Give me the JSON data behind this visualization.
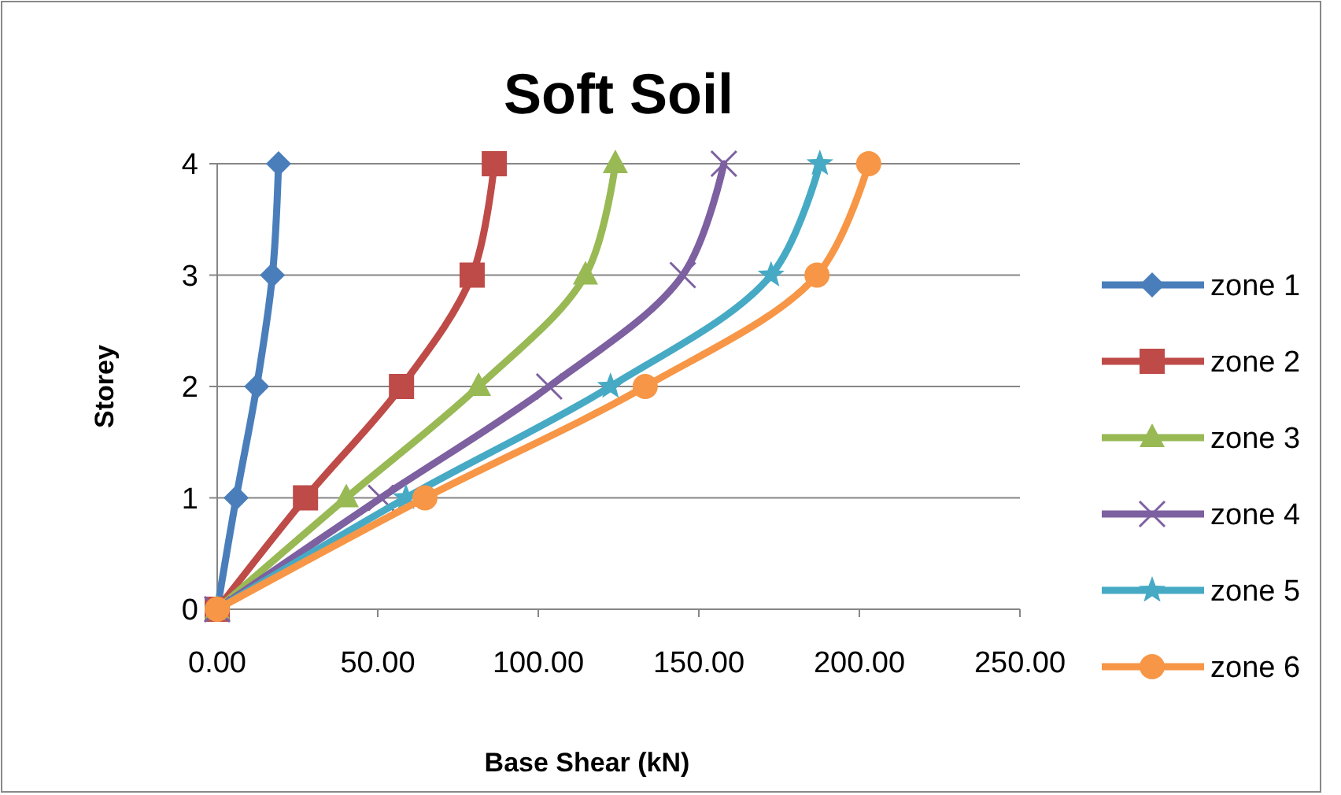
{
  "chart_data": {
    "type": "line",
    "title": "Soft Soil",
    "xlabel": "Base Shear (kN)",
    "ylabel": "Storey",
    "xlim": [
      0,
      250
    ],
    "xticks": [
      {
        "value": 0,
        "label": "0.00"
      },
      {
        "value": 50,
        "label": "50.00"
      },
      {
        "value": 100,
        "label": "100.00"
      },
      {
        "value": 150,
        "label": "150.00"
      },
      {
        "value": 200,
        "label": "200.00"
      },
      {
        "value": 250,
        "label": "250.00"
      }
    ],
    "ylim": [
      0,
      4
    ],
    "yticks": [
      0,
      1,
      2,
      3,
      4
    ],
    "grid": "y",
    "legend": "right",
    "series": [
      {
        "name": "zone 1",
        "color": "#4a7ebb",
        "marker": "diamond",
        "x": [
          0,
          5.9,
          12.3,
          17.2,
          19.1
        ],
        "values": [
          0,
          1,
          2,
          3,
          4
        ]
      },
      {
        "name": "zone 2",
        "color": "#be4b48",
        "marker": "square",
        "x": [
          0,
          27.5,
          57.4,
          79.4,
          86.3
        ],
        "values": [
          0,
          1,
          2,
          3,
          4
        ]
      },
      {
        "name": "zone 3",
        "color": "#98b954",
        "marker": "triangle",
        "x": [
          0,
          40.2,
          81.4,
          114.7,
          124
        ],
        "values": [
          0,
          1,
          2,
          3,
          4
        ]
      },
      {
        "name": "zone 4",
        "color": "#7d60a0",
        "marker": "cross",
        "x": [
          0,
          51,
          103.4,
          145,
          157.8
        ],
        "values": [
          0,
          1,
          2,
          3,
          4
        ]
      },
      {
        "name": "zone 5",
        "color": "#46aac5",
        "marker": "star",
        "x": [
          0,
          58.8,
          122.5,
          172.5,
          187.7
        ],
        "values": [
          0,
          1,
          2,
          3,
          4
        ]
      },
      {
        "name": "zone 6",
        "color": "#f79646",
        "marker": "circle",
        "x": [
          0,
          64.7,
          133.3,
          186.8,
          202.9
        ],
        "values": [
          0,
          1,
          2,
          3,
          4
        ]
      }
    ]
  }
}
